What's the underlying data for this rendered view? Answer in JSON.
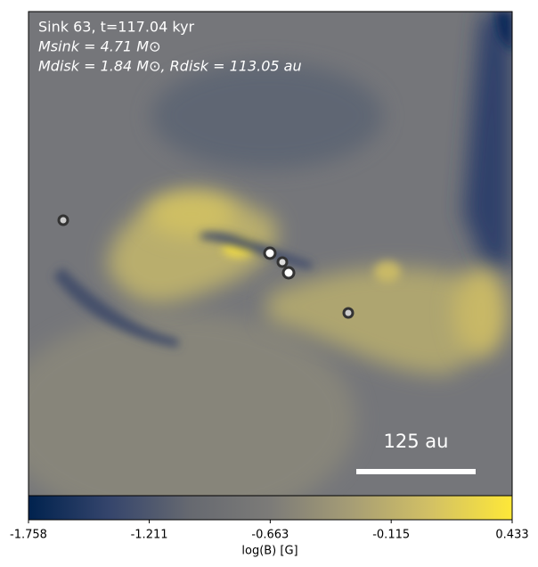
{
  "chart_data": {
    "type": "image",
    "annotations": [
      "Sink 63, t=117.04 kyr",
      "Msink = 4.71 M⊙",
      "Mdisk = 1.84 M⊙, Rdisk = 113.05 au"
    ],
    "scale_bar_label": "125 au",
    "colorbar": {
      "label": "log(B) [G]",
      "colormap": "cividis",
      "lim": [
        -1.758,
        0.433
      ],
      "ticks": [
        -1.758,
        -1.211,
        -0.663,
        -0.115,
        0.433
      ]
    }
  }
}
